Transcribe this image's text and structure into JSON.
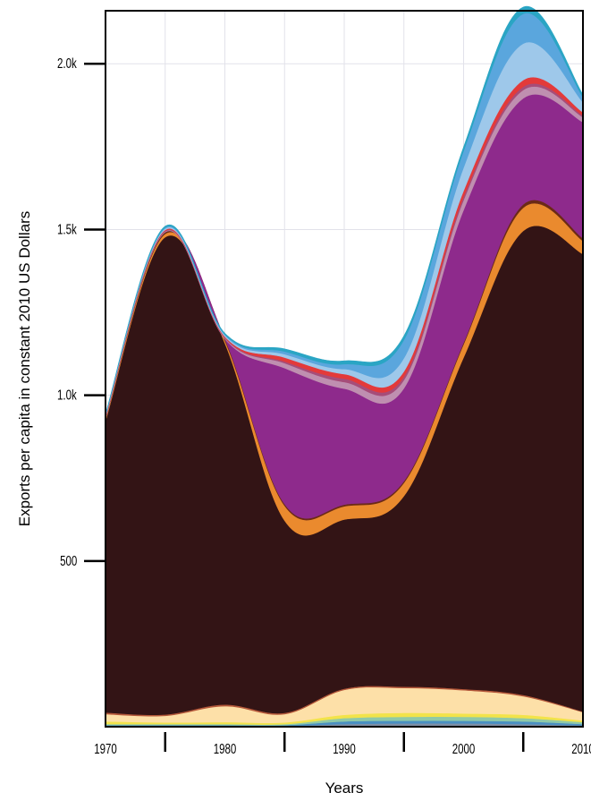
{
  "chart_data": {
    "type": "area",
    "stacked": true,
    "xlabel": "Years",
    "ylabel": "Exports per capita in constant 2010 US Dollars",
    "xlim": [
      1970,
      2010
    ],
    "ylim": [
      0,
      2160
    ],
    "x_ticks": [
      1970,
      1975,
      1980,
      1985,
      1990,
      1995,
      2000,
      2005,
      2010
    ],
    "x_tick_labels": [
      "1970",
      "",
      "1980",
      "",
      "1990",
      "",
      "2000",
      "",
      "2010"
    ],
    "y_ticks": [
      500,
      1000,
      1500,
      2000
    ],
    "y_tick_labels": [
      "500",
      "1.0k",
      "1.5k",
      "2.0k"
    ],
    "grid": true,
    "x": [
      1970,
      1975,
      1980,
      1985,
      1990,
      1995,
      2000,
      2005,
      2010
    ],
    "series": [
      {
        "color": "#7f8fa6",
        "values": [
          2,
          2,
          2,
          2,
          8,
          10,
          10,
          8,
          4
        ]
      },
      {
        "color": "#4a90c2",
        "values": [
          3,
          3,
          3,
          3,
          8,
          8,
          8,
          8,
          4
        ]
      },
      {
        "color": "#8fc9a8",
        "values": [
          3,
          3,
          3,
          3,
          10,
          12,
          12,
          10,
          6
        ]
      },
      {
        "color": "#f2e34a",
        "values": [
          8,
          5,
          6,
          5,
          10,
          12,
          10,
          10,
          5
        ]
      },
      {
        "color": "#fde0a8",
        "values": [
          22,
          20,
          48,
          25,
          75,
          75,
          70,
          56,
          25
        ]
      },
      {
        "color": "#b5583a",
        "values": [
          5,
          4,
          5,
          4,
          4,
          4,
          4,
          4,
          2
        ]
      },
      {
        "color": "#331415",
        "values": [
          880,
          1440,
          1090,
          580,
          510,
          575,
          1000,
          1400,
          1380
        ]
      },
      {
        "color": "#ea8a2e",
        "values": [
          5,
          10,
          8,
          45,
          40,
          40,
          40,
          70,
          40
        ]
      },
      {
        "color": "#6b2a16",
        "values": [
          2,
          5,
          5,
          5,
          5,
          5,
          5,
          10,
          8
        ]
      },
      {
        "color": "#8e2a8c",
        "values": [
          0,
          0,
          0,
          410,
          350,
          280,
          400,
          320,
          350
        ]
      },
      {
        "color": "#bf8fb0",
        "values": [
          2,
          2,
          2,
          15,
          20,
          25,
          30,
          25,
          15
        ]
      },
      {
        "color": "#a64d79",
        "values": [
          2,
          2,
          2,
          5,
          10,
          10,
          10,
          10,
          5
        ]
      },
      {
        "color": "#e33a3a",
        "values": [
          3,
          3,
          3,
          12,
          14,
          16,
          18,
          20,
          10
        ]
      },
      {
        "color": "#9ec8ea",
        "values": [
          3,
          4,
          4,
          10,
          15,
          40,
          70,
          110,
          30
        ]
      },
      {
        "color": "#5aa6dd",
        "values": [
          2,
          3,
          3,
          8,
          15,
          55,
          50,
          90,
          15
        ]
      },
      {
        "color": "#2aa5c4",
        "values": [
          2,
          4,
          3,
          8,
          10,
          12,
          12,
          20,
          8
        ]
      }
    ]
  }
}
